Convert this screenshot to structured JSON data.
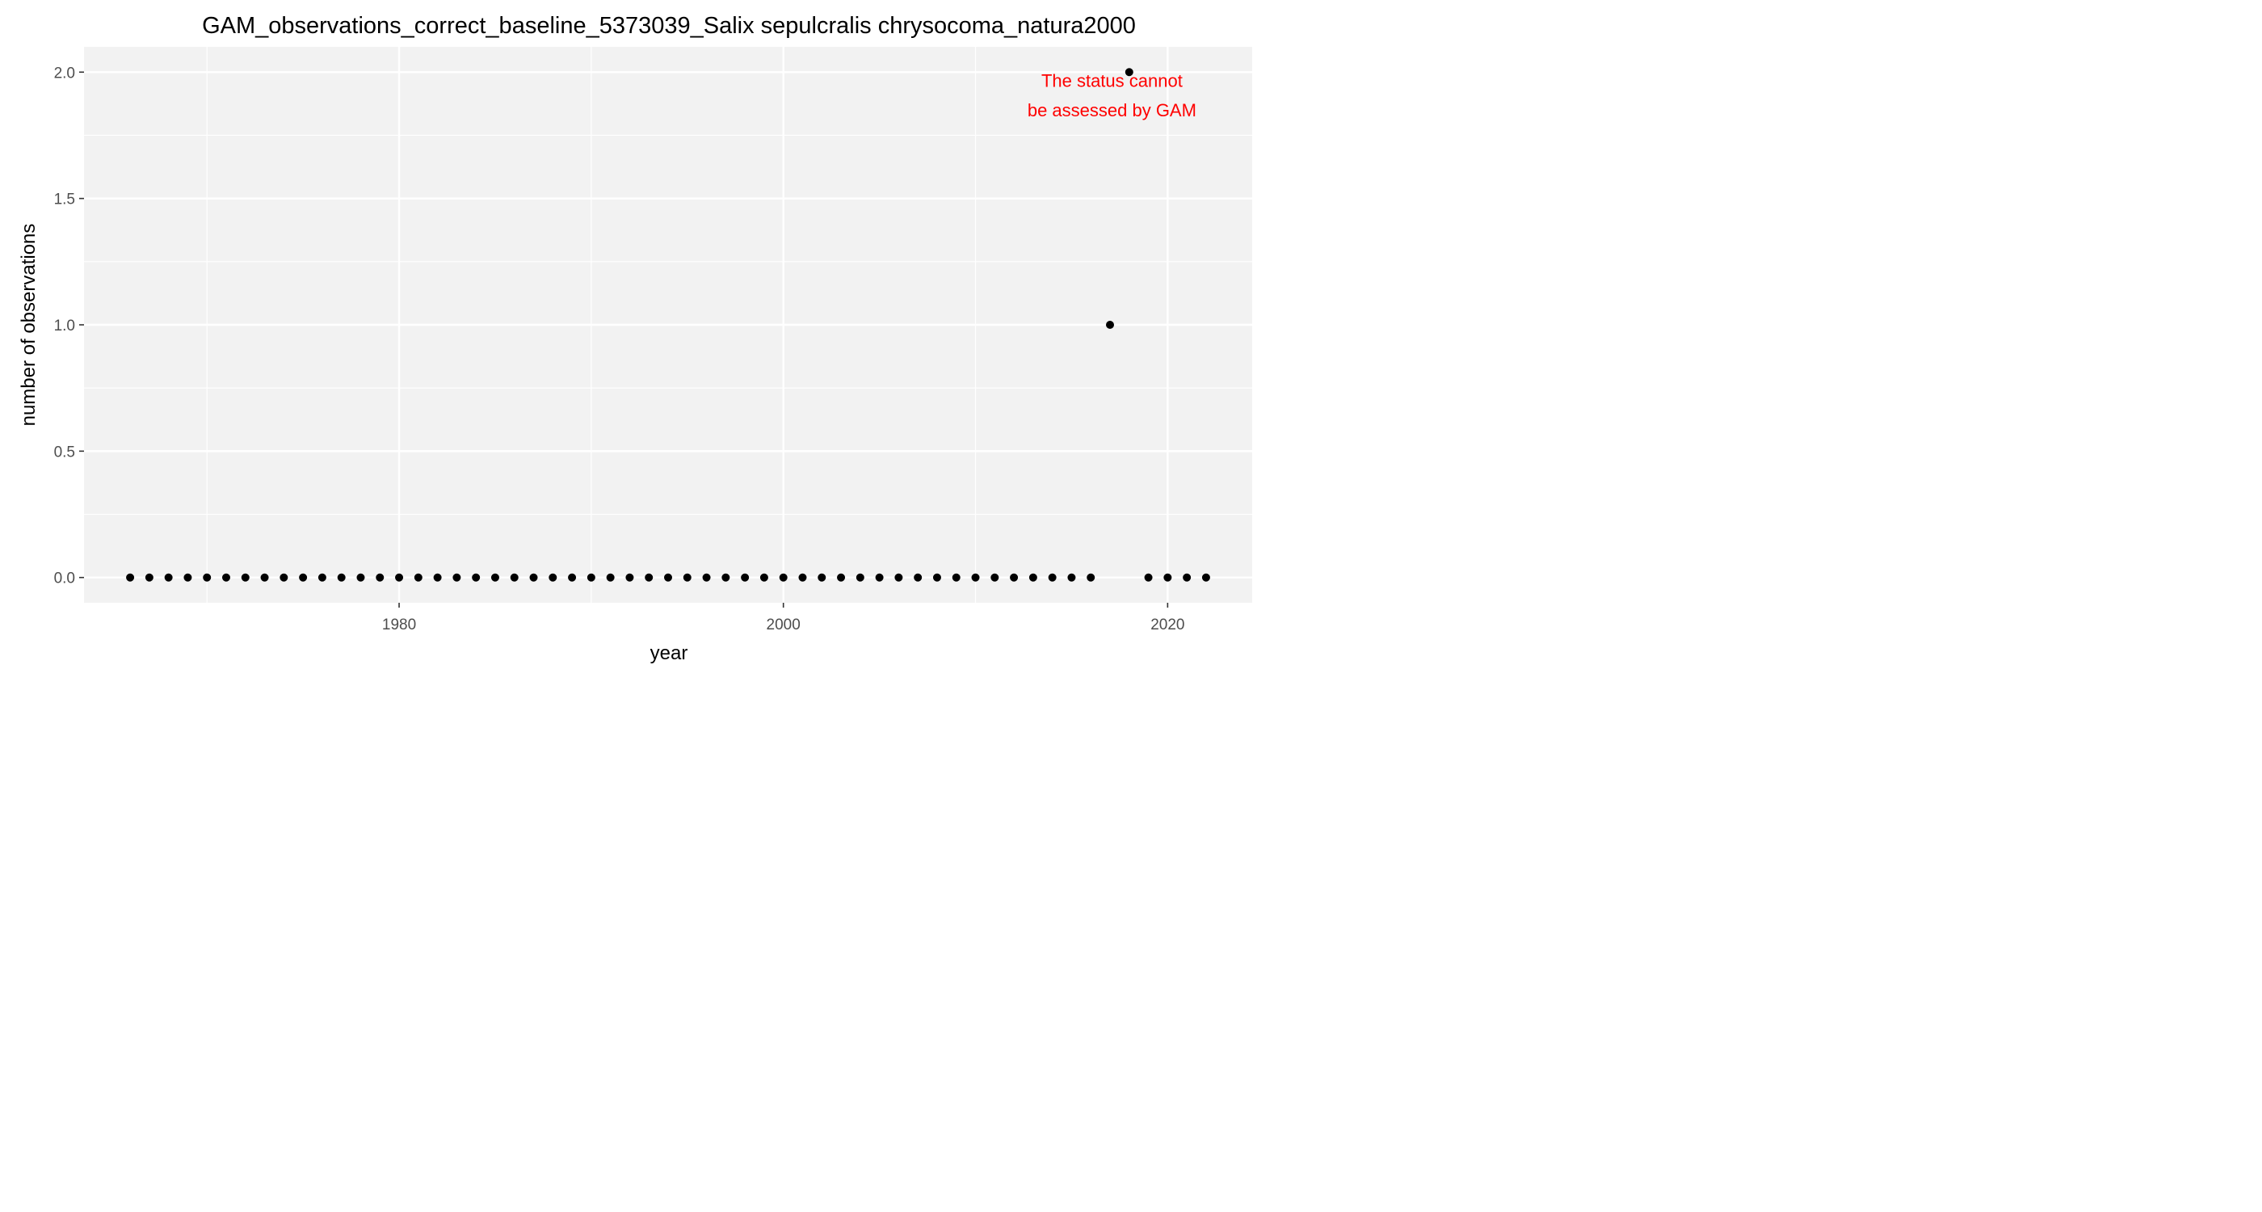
{
  "chart_data": {
    "type": "scatter",
    "title": "GAM_observations_correct_baseline_5373039_Salix sepulcralis chrysocoma_natura2000",
    "xlabel": "year",
    "ylabel": "number of observations",
    "xlim": [
      1963.6,
      2024.4
    ],
    "ylim": [
      -0.1,
      2.1
    ],
    "x_ticks": [
      1980,
      2000,
      2020
    ],
    "x_tick_labels": [
      "1980",
      "2000",
      "2020"
    ],
    "y_ticks": [
      0.0,
      0.5,
      1.0,
      1.5,
      2.0
    ],
    "y_tick_labels": [
      "0.0",
      "0.5",
      "1.0",
      "1.5",
      "2.0"
    ],
    "grid": true,
    "panel_background": "#f2f2f2",
    "grid_color": "#ffffff",
    "point_color": "#000000",
    "x": [
      1966,
      1967,
      1968,
      1969,
      1970,
      1971,
      1972,
      1973,
      1974,
      1975,
      1976,
      1977,
      1978,
      1979,
      1980,
      1981,
      1982,
      1983,
      1984,
      1985,
      1986,
      1987,
      1988,
      1989,
      1990,
      1991,
      1992,
      1993,
      1994,
      1995,
      1996,
      1997,
      1998,
      1999,
      2000,
      2001,
      2002,
      2003,
      2004,
      2005,
      2006,
      2007,
      2008,
      2009,
      2010,
      2011,
      2012,
      2013,
      2014,
      2015,
      2016,
      2017,
      2018,
      2019,
      2020,
      2021,
      2022
    ],
    "y": [
      0,
      0,
      0,
      0,
      0,
      0,
      0,
      0,
      0,
      0,
      0,
      0,
      0,
      0,
      0,
      0,
      0,
      0,
      0,
      0,
      0,
      0,
      0,
      0,
      0,
      0,
      0,
      0,
      0,
      0,
      0,
      0,
      0,
      0,
      0,
      0,
      0,
      0,
      0,
      0,
      0,
      0,
      0,
      0,
      0,
      0,
      0,
      0,
      0,
      0,
      0,
      1,
      2,
      0,
      0,
      0,
      0
    ],
    "annotation": {
      "lines": [
        "The status cannot",
        "be assessed by GAM"
      ],
      "color": "#ff0000",
      "x": 2017.1,
      "y_lines": [
        1.968,
        1.85
      ]
    }
  }
}
